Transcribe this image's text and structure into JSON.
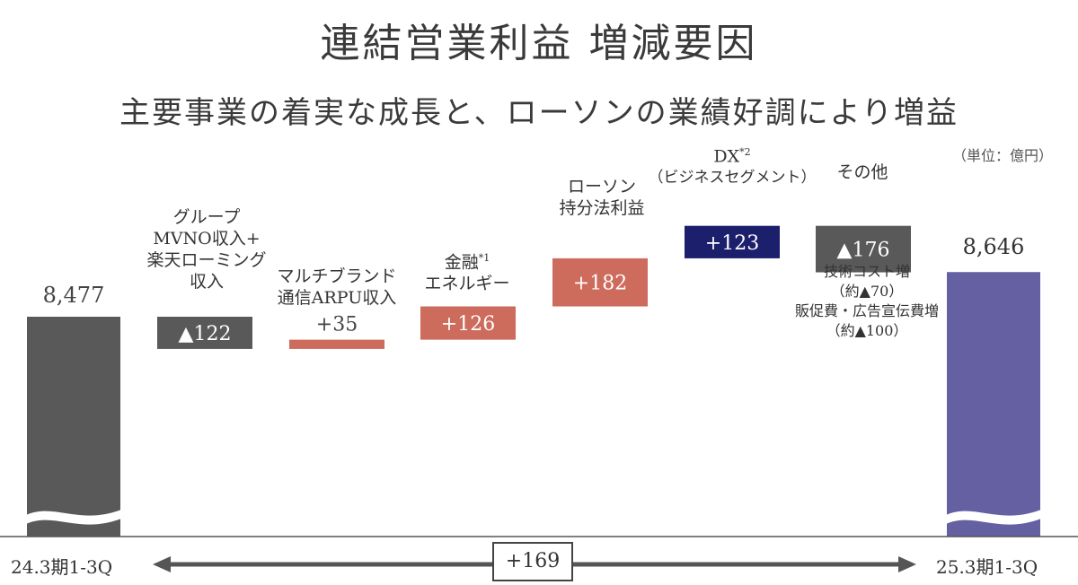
{
  "title": "連結営業利益 増減要因",
  "subtitle": "主要事業の着実な成長と、ローソンの業績好調により増益",
  "unit_label": "（単位：億円）",
  "colors": {
    "start_bar": "#595959",
    "negative": "#595959",
    "positive": "#cd6b5d",
    "dx": "#1c1f6b",
    "end_bar": "#6460a2",
    "text": "#333333"
  },
  "chart_data": {
    "type": "waterfall",
    "title": "連結営業利益 増減要因",
    "unit": "（単位：億円）",
    "start": {
      "label": "24.3期1-3Q",
      "value": 8477,
      "value_label": "8,477"
    },
    "end": {
      "label": "25.3期1-3Q",
      "value": 8646,
      "value_label": "8,646"
    },
    "steps": [
      {
        "label": "グループMVNO収入+楽天ローミング収入",
        "value": -122,
        "value_label": "▲122",
        "color_key": "negative"
      },
      {
        "label": "マルチブランド通信ARPU収入",
        "value": 35,
        "value_label": "+35",
        "color_key": "positive"
      },
      {
        "label": "金融*1エネルギー",
        "value": 126,
        "value_label": "+126",
        "color_key": "positive"
      },
      {
        "label": "ローソン持分法利益",
        "value": 182,
        "value_label": "+182",
        "color_key": "positive"
      },
      {
        "label": "DX*2（ビジネスセグメント）",
        "value": 123,
        "value_label": "+123",
        "color_key": "dx"
      },
      {
        "label": "その他",
        "value": -176,
        "value_label": "▲176",
        "color_key": "negative"
      }
    ],
    "total_change_label": "+169",
    "axis_broken": true
  },
  "labels": {
    "mvno": [
      "グループ",
      "MVNO収入+",
      "楽天ローミング",
      "収入"
    ],
    "multibrand": [
      "マルチブランド",
      "通信ARPU収入"
    ],
    "finance_main": "金融",
    "finance_sup": "*1",
    "energy": "エネルギー",
    "lawson": [
      "ローソン",
      "持分法利益"
    ],
    "dx_main": "DX",
    "dx_sup": "*2",
    "dx_sub": "（ビジネスセグメント）",
    "other": "その他"
  },
  "notes": {
    "other": [
      "技術コスト増",
      "（約▲70）",
      "販促費・広告宣伝費増",
      "（約▲100）"
    ]
  },
  "axis": {
    "start_label": "24.3期1-3Q",
    "end_label": "25.3期1-3Q",
    "total_change": "+169"
  }
}
